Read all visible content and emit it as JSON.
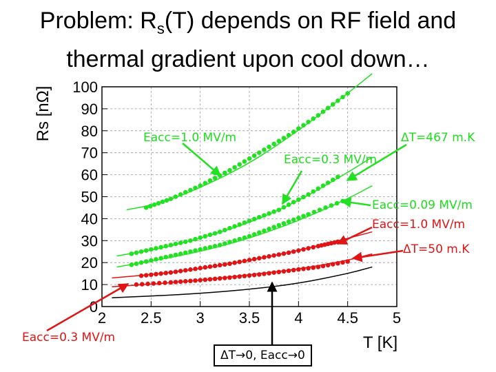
{
  "title": {
    "line1_prefix": "Problem: R",
    "line1_sub": "s",
    "line1_suffix": "(T) depends on RF field and",
    "line2": "thermal gradient upon cool down…"
  },
  "colors": {
    "green": "#22e022",
    "red": "#e01414",
    "black": "#000000"
  },
  "chart_data": {
    "type": "scatter",
    "xlabel": "T [K]",
    "ylabel": "Rs [nΩ]",
    "xlim": [
      2,
      5
    ],
    "ylim": [
      0,
      100
    ],
    "x_ticks": [
      "2",
      "2.5",
      "3",
      "3.5",
      "4",
      "4.5",
      "5"
    ],
    "y_ticks": [
      "0",
      "10",
      "20",
      "30",
      "40",
      "50",
      "60",
      "70",
      "80",
      "90",
      "100"
    ],
    "grid": true,
    "series": [
      {
        "color": "#22e022",
        "points": [
          [
            2.45,
            45
          ],
          [
            2.7,
            49
          ],
          [
            3.0,
            55
          ],
          [
            3.3,
            62
          ],
          [
            3.6,
            70
          ],
          [
            3.9,
            78
          ],
          [
            4.2,
            87
          ],
          [
            4.5,
            97
          ]
        ]
      },
      {
        "color": "#22e022",
        "points": [
          [
            2.3,
            24
          ],
          [
            2.6,
            27
          ],
          [
            2.9,
            30
          ],
          [
            3.2,
            34
          ],
          [
            3.5,
            39
          ],
          [
            3.8,
            44
          ],
          [
            4.1,
            51
          ],
          [
            4.4,
            59
          ]
        ]
      },
      {
        "color": "#22e022",
        "points": [
          [
            2.3,
            19
          ],
          [
            2.6,
            22
          ],
          [
            2.9,
            25
          ],
          [
            3.2,
            28
          ],
          [
            3.5,
            32
          ],
          [
            3.8,
            37
          ],
          [
            4.1,
            42
          ],
          [
            4.45,
            48
          ]
        ]
      },
      {
        "color": "#e01414",
        "points": [
          [
            2.4,
            14
          ],
          [
            2.7,
            15.5
          ],
          [
            3.0,
            17.5
          ],
          [
            3.3,
            19.5
          ],
          [
            3.6,
            22
          ],
          [
            3.9,
            24.5
          ],
          [
            4.2,
            27.5
          ],
          [
            4.4,
            29.5
          ]
        ]
      },
      {
        "color": "#e01414",
        "points": [
          [
            2.35,
            10
          ],
          [
            2.7,
            11
          ],
          [
            3.0,
            12
          ],
          [
            3.3,
            13.2
          ],
          [
            3.6,
            14.6
          ],
          [
            3.9,
            16.3
          ],
          [
            4.2,
            18
          ],
          [
            4.5,
            20.5
          ]
        ]
      }
    ],
    "fit_lines": [
      {
        "color": "#22e022",
        "points": [
          [
            2.25,
            44
          ],
          [
            2.6,
            47
          ],
          [
            3.0,
            54
          ],
          [
            3.5,
            65
          ],
          [
            4.0,
            80
          ],
          [
            4.5,
            97
          ],
          [
            4.75,
            106
          ]
        ]
      },
      {
        "color": "#22e022",
        "points": [
          [
            2.15,
            23
          ],
          [
            2.6,
            26.5
          ],
          [
            3.0,
            31
          ],
          [
            3.5,
            38
          ],
          [
            4.0,
            48
          ],
          [
            4.5,
            61
          ],
          [
            4.75,
            68
          ]
        ]
      },
      {
        "color": "#22e022",
        "points": [
          [
            2.15,
            18
          ],
          [
            2.6,
            21.5
          ],
          [
            3.0,
            25
          ],
          [
            3.5,
            31
          ],
          [
            4.0,
            39
          ],
          [
            4.5,
            49
          ],
          [
            4.75,
            55
          ]
        ]
      },
      {
        "color": "#e01414",
        "points": [
          [
            2.1,
            13
          ],
          [
            2.6,
            15
          ],
          [
            3.0,
            17.2
          ],
          [
            3.5,
            21
          ],
          [
            4.0,
            25.5
          ],
          [
            4.5,
            31
          ],
          [
            4.75,
            34
          ]
        ]
      },
      {
        "color": "#e01414",
        "points": [
          [
            2.1,
            9
          ],
          [
            2.6,
            10.5
          ],
          [
            3.0,
            12
          ],
          [
            3.5,
            14.5
          ],
          [
            4.0,
            17
          ],
          [
            4.5,
            21
          ],
          [
            4.75,
            24
          ]
        ]
      },
      {
        "color": "#000000",
        "points": [
          [
            2.1,
            4
          ],
          [
            2.6,
            5
          ],
          [
            3.0,
            6
          ],
          [
            3.5,
            7.8
          ],
          [
            4.0,
            10.5
          ],
          [
            4.5,
            15
          ],
          [
            4.75,
            18
          ]
        ]
      }
    ],
    "annotations": [
      {
        "text": "Eacc=1.0 MV/m",
        "color": "#22e022"
      },
      {
        "text": "ΔT=467 m.K",
        "color": "#22e022"
      },
      {
        "text": "Eacc=0.3 MV/m",
        "color": "#22e022"
      },
      {
        "text": "Eacc=0.09 MV/m",
        "color": "#22e022"
      },
      {
        "text": "Eacc=1.0 MV/m",
        "color": "#e01414"
      },
      {
        "text": "ΔT=50 m.K",
        "color": "#e01414"
      },
      {
        "text": "Eacc=0.3 MV/m",
        "color": "#e01414"
      },
      {
        "text": "ΔT→0, Eacc→0",
        "color": "#000000"
      }
    ]
  }
}
